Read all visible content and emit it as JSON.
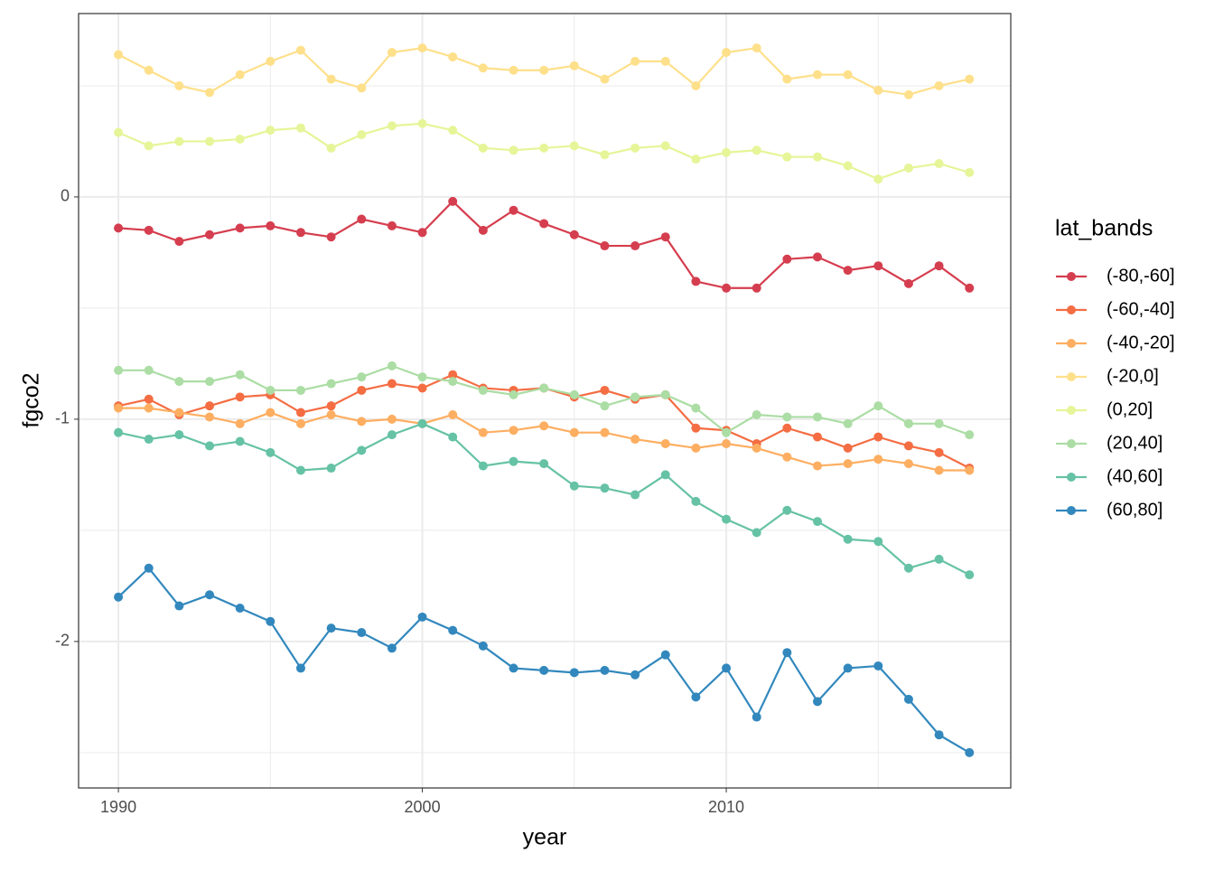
{
  "chart_data": {
    "type": "line",
    "x_label": "year",
    "y_label": "fgco2",
    "legend_title": "lat_bands",
    "legend": "right",
    "grid": true,
    "x": [
      1990,
      1991,
      1992,
      1993,
      1994,
      1995,
      1996,
      1997,
      1998,
      1999,
      2000,
      2001,
      2002,
      2003,
      2004,
      2005,
      2006,
      2007,
      2008,
      2009,
      2010,
      2011,
      2012,
      2013,
      2014,
      2015,
      2016,
      2017,
      2018
    ],
    "xlim": [
      1988.69,
      2019.36
    ],
    "xticks": [
      1990,
      2000,
      2010
    ],
    "xminor": [
      1995,
      2005,
      2015
    ],
    "ylim": [
      -2.659,
      0.825
    ],
    "yticks": [
      -2,
      -1,
      0
    ],
    "yminor": [
      -2.5,
      -1.5,
      -0.5,
      0.5
    ],
    "series": [
      {
        "name": "(-80,-60]",
        "color": "#D53E4F",
        "values": [
          -0.14,
          -0.15,
          -0.2,
          -0.17,
          -0.14,
          -0.13,
          -0.16,
          -0.18,
          -0.1,
          -0.13,
          -0.16,
          -0.02,
          -0.15,
          -0.06,
          -0.12,
          -0.17,
          -0.22,
          -0.22,
          -0.18,
          -0.38,
          -0.41,
          -0.41,
          -0.28,
          -0.27,
          -0.33,
          -0.31,
          -0.39,
          -0.31,
          -0.41
        ]
      },
      {
        "name": "(-60,-40]",
        "color": "#F46D43",
        "values": [
          -0.94,
          -0.91,
          -0.98,
          -0.94,
          -0.9,
          -0.89,
          -0.97,
          -0.94,
          -0.87,
          -0.84,
          -0.86,
          -0.8,
          -0.86,
          -0.87,
          -0.86,
          -0.9,
          -0.87,
          -0.91,
          -0.89,
          -1.04,
          -1.05,
          -1.11,
          -1.04,
          -1.08,
          -1.13,
          -1.08,
          -1.12,
          -1.15,
          -1.22
        ]
      },
      {
        "name": "(-40,-20]",
        "color": "#FDAE61",
        "values": [
          -0.95,
          -0.95,
          -0.97,
          -0.99,
          -1.02,
          -0.97,
          -1.02,
          -0.98,
          -1.01,
          -1.0,
          -1.02,
          -0.98,
          -1.06,
          -1.05,
          -1.03,
          -1.06,
          -1.06,
          -1.09,
          -1.11,
          -1.13,
          -1.11,
          -1.13,
          -1.17,
          -1.21,
          -1.2,
          -1.18,
          -1.2,
          -1.23,
          -1.23
        ]
      },
      {
        "name": "(-20,0]",
        "color": "#FEE08B",
        "values": [
          0.64,
          0.57,
          0.5,
          0.47,
          0.55,
          0.61,
          0.66,
          0.53,
          0.49,
          0.65,
          0.67,
          0.63,
          0.58,
          0.57,
          0.57,
          0.59,
          0.53,
          0.61,
          0.61,
          0.5,
          0.65,
          0.67,
          0.53,
          0.55,
          0.55,
          0.48,
          0.46,
          0.5,
          0.53
        ]
      },
      {
        "name": "(0,20]",
        "color": "#E6F598",
        "values": [
          0.29,
          0.23,
          0.25,
          0.25,
          0.26,
          0.3,
          0.31,
          0.22,
          0.28,
          0.32,
          0.33,
          0.3,
          0.22,
          0.21,
          0.22,
          0.23,
          0.19,
          0.22,
          0.23,
          0.17,
          0.2,
          0.21,
          0.18,
          0.18,
          0.14,
          0.08,
          0.13,
          0.15,
          0.11
        ]
      },
      {
        "name": "(20,40]",
        "color": "#ABDDA4",
        "values": [
          -0.78,
          -0.78,
          -0.83,
          -0.83,
          -0.8,
          -0.87,
          -0.87,
          -0.84,
          -0.81,
          -0.76,
          -0.81,
          -0.83,
          -0.87,
          -0.89,
          -0.86,
          -0.89,
          -0.94,
          -0.9,
          -0.89,
          -0.95,
          -1.06,
          -0.98,
          -0.99,
          -0.99,
          -1.02,
          -0.94,
          -1.02,
          -1.02,
          -1.07
        ]
      },
      {
        "name": "(40,60]",
        "color": "#66C2A5",
        "values": [
          -1.06,
          -1.09,
          -1.07,
          -1.12,
          -1.1,
          -1.15,
          -1.23,
          -1.22,
          -1.14,
          -1.07,
          -1.02,
          -1.08,
          -1.21,
          -1.19,
          -1.2,
          -1.3,
          -1.31,
          -1.34,
          -1.25,
          -1.37,
          -1.45,
          -1.51,
          -1.41,
          -1.46,
          -1.54,
          -1.55,
          -1.67,
          -1.63,
          -1.7
        ]
      },
      {
        "name": "(60,80]",
        "color": "#3288BD",
        "values": [
          -1.8,
          -1.67,
          -1.84,
          -1.79,
          -1.85,
          -1.91,
          -2.12,
          -1.94,
          -1.96,
          -2.03,
          -1.89,
          -1.95,
          -2.02,
          -2.12,
          -2.13,
          -2.14,
          -2.13,
          -2.15,
          -2.06,
          -2.25,
          -2.12,
          -2.34,
          -2.05,
          -2.27,
          -2.12,
          -2.11,
          -2.26,
          -2.42,
          -2.5
        ]
      }
    ]
  }
}
